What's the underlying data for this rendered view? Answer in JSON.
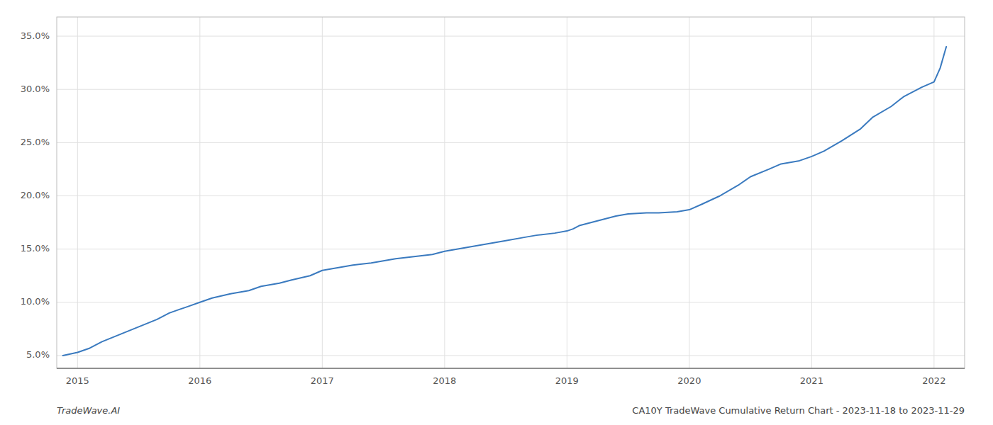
{
  "chart_data": {
    "type": "line",
    "annotations": [
      "TradeWave.AI",
      "CA10Y TradeWave Cumulative Return Chart - 2023-11-18 to 2023-11-29"
    ],
    "color": "#3a7abf",
    "grid": true,
    "xlim": [
      2014.83,
      2022.25
    ],
    "ylim": [
      0.038,
      0.368
    ],
    "xticks": [
      2015,
      2016,
      2017,
      2018,
      2019,
      2020,
      2021,
      2022
    ],
    "yticks": [
      {
        "value": 0.05,
        "label": "5.0%"
      },
      {
        "value": 0.1,
        "label": "10.0%"
      },
      {
        "value": 0.15,
        "label": "15.0%"
      },
      {
        "value": 0.2,
        "label": "20.0%"
      },
      {
        "value": 0.25,
        "label": "25.0%"
      },
      {
        "value": 0.3,
        "label": "30.0%"
      },
      {
        "value": 0.35,
        "label": "35.0%"
      }
    ],
    "x": [
      2014.88,
      2015.0,
      2015.1,
      2015.2,
      2015.35,
      2015.5,
      2015.65,
      2015.75,
      2015.9,
      2016.0,
      2016.1,
      2016.25,
      2016.4,
      2016.5,
      2016.65,
      2016.75,
      2016.9,
      2017.0,
      2017.1,
      2017.25,
      2017.4,
      2017.5,
      2017.6,
      2017.75,
      2017.9,
      2018.0,
      2018.1,
      2018.25,
      2018.4,
      2018.5,
      2018.65,
      2018.75,
      2018.9,
      2019.0,
      2019.05,
      2019.1,
      2019.2,
      2019.3,
      2019.4,
      2019.5,
      2019.65,
      2019.75,
      2019.9,
      2020.0,
      2020.1,
      2020.25,
      2020.4,
      2020.5,
      2020.65,
      2020.75,
      2020.9,
      2021.0,
      2021.1,
      2021.25,
      2021.4,
      2021.5,
      2021.65,
      2021.75,
      2021.9,
      2022.0,
      2022.05,
      2022.1
    ],
    "values": [
      0.05,
      0.053,
      0.057,
      0.063,
      0.07,
      0.077,
      0.084,
      0.09,
      0.096,
      0.1,
      0.104,
      0.108,
      0.111,
      0.115,
      0.118,
      0.121,
      0.125,
      0.13,
      0.132,
      0.135,
      0.137,
      0.139,
      0.141,
      0.143,
      0.145,
      0.148,
      0.15,
      0.153,
      0.156,
      0.158,
      0.161,
      0.163,
      0.165,
      0.167,
      0.169,
      0.172,
      0.175,
      0.178,
      0.181,
      0.183,
      0.184,
      0.184,
      0.185,
      0.187,
      0.192,
      0.2,
      0.21,
      0.218,
      0.225,
      0.23,
      0.233,
      0.237,
      0.242,
      0.252,
      0.263,
      0.274,
      0.284,
      0.293,
      0.302,
      0.307,
      0.32,
      0.34
    ]
  }
}
